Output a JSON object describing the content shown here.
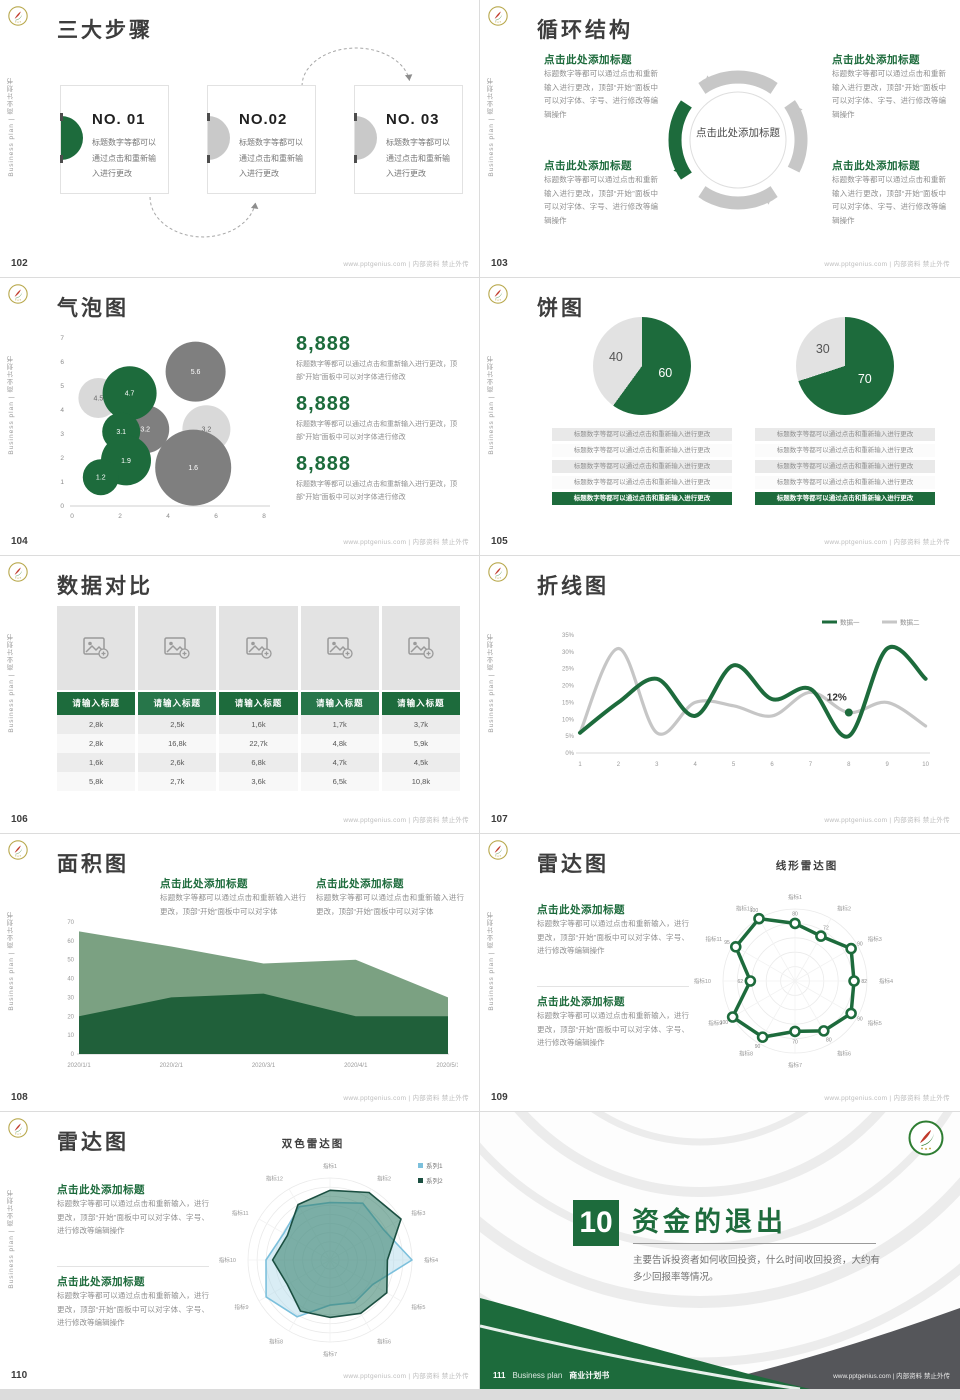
{
  "common": {
    "side_text": "Business plan | 商业计划书",
    "source_text": "www.pptgenius.com | 内部资料 禁止外传",
    "accent_green": "#1d6b3c"
  },
  "slides": {
    "s102": {
      "page": "102",
      "title": "三大步骤",
      "cards": [
        {
          "no": "NO. 01",
          "body": "标题数字等都可以通过点击和重新输入进行更改"
        },
        {
          "no": "NO.02",
          "body": "标题数字等都可以通过点击和重新输入进行更改"
        },
        {
          "no": "NO. 03",
          "body": "标题数字等都可以通过点击和重新输入进行更改"
        }
      ]
    },
    "s103": {
      "page": "103",
      "title": "循环结构",
      "center": "点击此处添加标题",
      "blocks": [
        {
          "heading": "点击此处添加标题",
          "body": "标题数字等都可以通过点击和重新输入进行更改，顶部“开始”面板中可以对字体、字号、进行修改等编辑操作"
        },
        {
          "heading": "点击此处添加标题",
          "body": "标题数字等都可以通过点击和重新输入进行更改，顶部“开始”面板中可以对字体、字号、进行修改等编辑操作"
        },
        {
          "heading": "点击此处添加标题",
          "body": "标题数字等都可以通过点击和重新输入进行更改，顶部“开始”面板中可以对字体、字号、进行修改等编辑操作"
        },
        {
          "heading": "点击此处添加标题",
          "body": "标题数字等都可以通过点击和重新输入进行更改，顶部“开始”面板中可以对字体、字号、进行修改等编辑操作"
        }
      ]
    },
    "s104": {
      "page": "104",
      "title": "气泡图",
      "stats": [
        {
          "value": "8,888",
          "body": "标题数字等都可以通过点击和重新输入进行更改，顶部“开始”面板中可以对字体进行修改"
        },
        {
          "value": "8,888",
          "body": "标题数字等都可以通过点击和重新输入进行更改，顶部“开始”面板中可以对字体进行修改"
        },
        {
          "value": "8,888",
          "body": "标题数字等都可以通过点击和重新输入进行更改，顶部“开始”面板中可以对字体进行修改"
        }
      ]
    },
    "s105": {
      "page": "105",
      "title": "饼图",
      "row_text": "标题数字等都可以通过点击和重新输入进行更改"
    },
    "s106": {
      "page": "106",
      "title": "数据对比",
      "table": {
        "headers": [
          "请输入标题",
          "请输入标题",
          "请输入标题",
          "请输入标题",
          "请输入标题"
        ],
        "rows": [
          [
            "2,8k",
            "2,5k",
            "1,6k",
            "1,7k",
            "3,7k"
          ],
          [
            "2,8k",
            "16,8k",
            "22,7k",
            "4,8k",
            "5,9k"
          ],
          [
            "1,6k",
            "2,6k",
            "6,8k",
            "4,7k",
            "4,5k"
          ],
          [
            "5,8k",
            "2,7k",
            "3,6k",
            "6,5k",
            "10,8k"
          ]
        ]
      }
    },
    "s107": {
      "page": "107",
      "title": "折线图"
    },
    "s108": {
      "page": "108",
      "title": "面积图",
      "blocks": [
        {
          "heading": "点击此处添加标题",
          "body": "标题数字等都可以通过点击和重新输入进行更改，顶部“开始”面板中可以对字体"
        },
        {
          "heading": "点击此处添加标题",
          "body": "标题数字等都可以通过点击和重新输入进行更改，顶部“开始”面板中可以对字体"
        }
      ]
    },
    "s109": {
      "page": "109",
      "title": "雷达图",
      "subtitle": "线形雷达图",
      "blocks": [
        {
          "heading": "点击此处添加标题",
          "body": "标题数字等都可以通过点击和重新输入，进行更改，顶部“开始”面板中可以对字体、字号、进行修改等编辑操作"
        },
        {
          "heading": "点击此处添加标题",
          "body": "标题数字等都可以通过点击和重新输入，进行更改，顶部“开始”面板中可以对字体、字号、进行修改等编辑操作"
        }
      ]
    },
    "s110": {
      "page": "110",
      "title": "雷达图",
      "subtitle": "双色雷达图",
      "blocks": [
        {
          "heading": "点击此处添加标题",
          "body": "标题数字等都可以通过点击和重新输入，进行更改，顶部“开始”面板中可以对字体、字号、进行修改等编辑操作"
        },
        {
          "heading": "点击此处添加标题",
          "body": "标题数字等都可以通过点击和重新输入，进行更改，顶部“开始”面板中可以对字体、字号、进行修改等编辑操作"
        }
      ]
    },
    "s111": {
      "page": "111",
      "chapter_no": "10",
      "title": "资金的退出",
      "body": "主要告诉投资者如何收回投资，什么时间收回投资，大约有多少回报率等情况。",
      "footer_en": "Business plan",
      "footer_cn": "商业计划书"
    }
  },
  "chart_data": [
    {
      "id": "bubble",
      "type": "scatter",
      "slide": "104",
      "x_range": [
        0,
        8
      ],
      "y_range": [
        0,
        7
      ],
      "x_ticks": [
        0,
        2,
        4,
        6,
        8
      ],
      "y_ticks": [
        0,
        1,
        2,
        3,
        4,
        5,
        6,
        7
      ],
      "points": [
        {
          "x": 1.1,
          "y": 4.5,
          "label": "4.5",
          "color": "#d9d9d9",
          "r": 20
        },
        {
          "x": 5.15,
          "y": 5.6,
          "label": "5.6",
          "color": "#7f7f7f",
          "r": 30
        },
        {
          "x": 3.05,
          "y": 3.2,
          "label": "3.2",
          "color": "#7f7f7f",
          "r": 24
        },
        {
          "x": 5.6,
          "y": 3.2,
          "label": "3.2",
          "color": "#d9d9d9",
          "r": 24
        },
        {
          "x": 5.05,
          "y": 1.6,
          "label": "1.6",
          "color": "#7f7f7f",
          "r": 38
        },
        {
          "x": 2.4,
          "y": 4.7,
          "label": "4.7",
          "color": "#1d6b3c",
          "r": 27
        },
        {
          "x": 2.05,
          "y": 3.1,
          "label": "3.1",
          "color": "#1d6b3c",
          "r": 19
        },
        {
          "x": 2.25,
          "y": 1.9,
          "label": "1.9",
          "color": "#1d6b3c",
          "r": 25
        },
        {
          "x": 1.2,
          "y": 1.2,
          "label": "1.2",
          "color": "#1d6b3c",
          "r": 18
        }
      ]
    },
    {
      "id": "pie-left",
      "type": "pie",
      "slide": "105",
      "values": [
        60,
        40
      ],
      "labels": [
        "60",
        "40"
      ],
      "colors": [
        "#1d6b3c",
        "#e2e2e2"
      ]
    },
    {
      "id": "pie-right",
      "type": "pie",
      "slide": "105",
      "values": [
        70,
        30
      ],
      "labels": [
        "70",
        "30"
      ],
      "colors": [
        "#1d6b3c",
        "#e2e2e2"
      ]
    },
    {
      "id": "line",
      "type": "line",
      "slide": "107",
      "x": [
        1,
        2,
        3,
        4,
        5,
        6,
        7,
        8,
        9,
        10
      ],
      "ylim": [
        0,
        35
      ],
      "y_tick_step": 5,
      "y_format": "percent",
      "series": [
        {
          "name": "数据一",
          "color": "#1d6b3c",
          "values": [
            6,
            15,
            22,
            11,
            26,
            16,
            19,
            5,
            31,
            22
          ]
        },
        {
          "name": "数据二",
          "color": "#c6c6c6",
          "values": [
            6,
            31,
            6,
            15,
            14,
            11,
            18,
            12,
            15,
            8
          ]
        }
      ],
      "annotation": {
        "x": 8,
        "y": 12,
        "label": "12%"
      }
    },
    {
      "id": "area",
      "type": "area",
      "slide": "108",
      "categories": [
        "2020/1/1",
        "2020/2/1",
        "2020/3/1",
        "2020/4/1",
        "2020/5/1"
      ],
      "ylim": [
        0,
        70
      ],
      "y_tick_step": 10,
      "series": [
        {
          "name": "series-light",
          "color": "#7ba182",
          "values": [
            65,
            57,
            48,
            50,
            30
          ]
        },
        {
          "name": "series-dark",
          "color": "#20603a",
          "values": [
            20,
            30,
            32,
            20,
            20
          ]
        }
      ]
    },
    {
      "id": "radar-line",
      "type": "radar",
      "slide": "109",
      "max": 100,
      "categories": [
        "指标1",
        "指标2",
        "指标3",
        "指标4",
        "指标5",
        "指标6",
        "指标7",
        "指标8",
        "指标9",
        "指标10",
        "指标11",
        "指标12"
      ],
      "series": [
        {
          "name": "数据",
          "color": "#1d6b3c",
          "values": [
            80,
            72,
            90,
            82,
            90,
            80,
            70,
            90,
            100,
            62,
            95,
            100
          ]
        }
      ]
    },
    {
      "id": "radar-dual",
      "type": "radar",
      "slide": "110",
      "max": 100,
      "categories": [
        "指标1",
        "指标2",
        "指标3",
        "指标4",
        "指标5",
        "指标6",
        "指标7",
        "指标8",
        "指标9",
        "指标10",
        "指标11",
        "指标12"
      ],
      "series": [
        {
          "name": "系列1",
          "color": "#7cc0dc",
          "fill": "rgba(170,216,233,0.45)",
          "values": [
            70,
            80,
            75,
            100,
            60,
            60,
            55,
            80,
            90,
            78,
            65,
            75
          ]
        },
        {
          "name": "系列2",
          "color": "#1b4f41",
          "fill": "rgba(45,122,100,0.55)",
          "values": [
            85,
            95,
            100,
            70,
            80,
            75,
            70,
            72,
            60,
            70,
            60,
            78
          ]
        }
      ]
    }
  ]
}
